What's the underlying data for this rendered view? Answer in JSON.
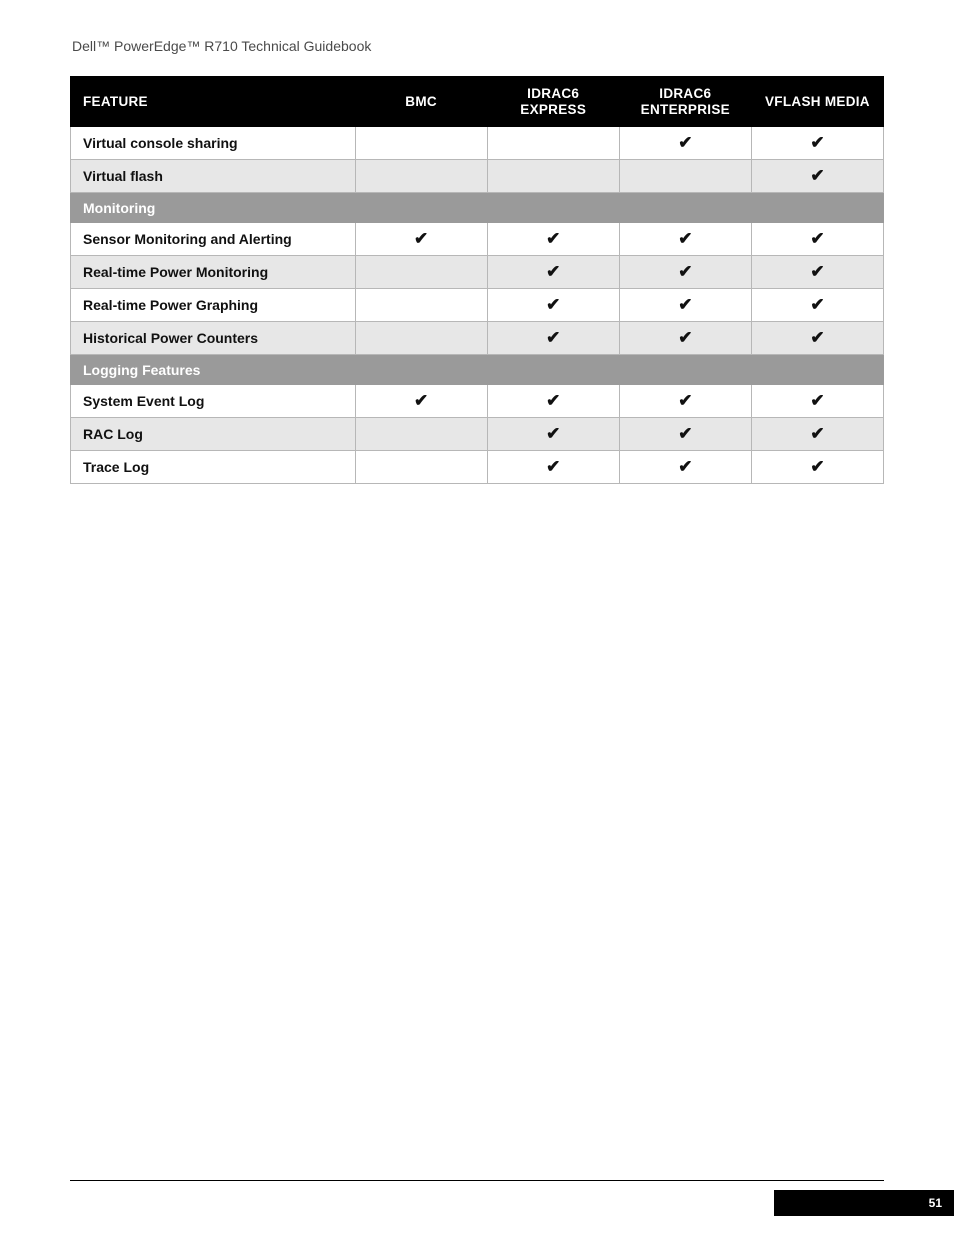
{
  "doc_title": "Dell™ PowerEdge™ R710 Technical Guidebook",
  "page_number": "51",
  "checkmark_glyph": "✔",
  "colors": {
    "header_bg": "#000000",
    "header_fg": "#ffffff",
    "section_bg": "#9a9a9a",
    "section_fg": "#ffffff",
    "row_even_bg": "#e7e7e7",
    "row_odd_bg": "#ffffff",
    "border": "#b7b7b7",
    "text": "#111111"
  },
  "table": {
    "columns": [
      {
        "key": "feature",
        "label": "Feature"
      },
      {
        "key": "bmc",
        "label": "BMC"
      },
      {
        "key": "idrac6_express",
        "label": "iDRAC6 Express"
      },
      {
        "key": "idrac6_enterprise",
        "label": "iDRAC6 Enterprise"
      },
      {
        "key": "vflash_media",
        "label": "vFlash Media"
      }
    ],
    "rows": [
      {
        "type": "data",
        "zebra": "odd",
        "feature": "Virtual console sharing",
        "bmc": false,
        "idrac6_express": false,
        "idrac6_enterprise": true,
        "vflash_media": true
      },
      {
        "type": "data",
        "zebra": "even",
        "feature": "Virtual flash",
        "bmc": false,
        "idrac6_express": false,
        "idrac6_enterprise": false,
        "vflash_media": true
      },
      {
        "type": "section",
        "label": "Monitoring"
      },
      {
        "type": "data",
        "zebra": "odd",
        "feature": "Sensor Monitoring and Alerting",
        "bmc": true,
        "idrac6_express": true,
        "idrac6_enterprise": true,
        "vflash_media": true
      },
      {
        "type": "data",
        "zebra": "even",
        "feature": "Real-time Power Monitoring",
        "bmc": false,
        "idrac6_express": true,
        "idrac6_enterprise": true,
        "vflash_media": true
      },
      {
        "type": "data",
        "zebra": "odd",
        "feature": "Real-time Power Graphing",
        "bmc": false,
        "idrac6_express": true,
        "idrac6_enterprise": true,
        "vflash_media": true
      },
      {
        "type": "data",
        "zebra": "even",
        "feature": "Historical Power Counters",
        "bmc": false,
        "idrac6_express": true,
        "idrac6_enterprise": true,
        "vflash_media": true
      },
      {
        "type": "section",
        "label": "Logging Features"
      },
      {
        "type": "data",
        "zebra": "odd",
        "feature": "System Event Log",
        "bmc": true,
        "idrac6_express": true,
        "idrac6_enterprise": true,
        "vflash_media": true
      },
      {
        "type": "data",
        "zebra": "even",
        "feature": "RAC Log",
        "bmc": false,
        "idrac6_express": true,
        "idrac6_enterprise": true,
        "vflash_media": true
      },
      {
        "type": "data",
        "zebra": "odd",
        "feature": "Trace Log",
        "bmc": false,
        "idrac6_express": true,
        "idrac6_enterprise": true,
        "vflash_media": true
      }
    ]
  }
}
